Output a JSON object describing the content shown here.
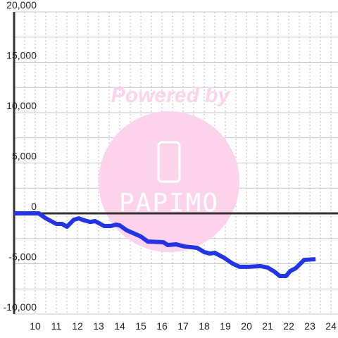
{
  "chart_data": {
    "type": "line",
    "watermark": {
      "title": "Powered by",
      "logo": "PAPIMO"
    },
    "x": [
      9,
      10.17,
      10.5,
      11,
      11.27,
      11.5,
      11.83,
      12.07,
      12.33,
      12.6,
      12.83,
      13.27,
      13.57,
      13.83,
      14,
      14.33,
      15,
      15.33,
      16.07,
      16.27,
      16.67,
      17.07,
      17.67,
      18,
      18.27,
      18.5,
      18.93,
      19.33,
      19.67,
      20.07,
      20.67,
      21,
      21.33,
      21.57,
      21.87,
      22.07,
      22.33,
      22.73,
      23.27
    ],
    "series": [
      {
        "color": "#2233ee",
        "values": [
          0,
          0,
          -490,
          -1050,
          -1050,
          -1330,
          -630,
          -500,
          -700,
          -850,
          -770,
          -1260,
          -1260,
          -1120,
          -1190,
          -1680,
          -2300,
          -2800,
          -2870,
          -3150,
          -3080,
          -3290,
          -3430,
          -3850,
          -3990,
          -3920,
          -4400,
          -4970,
          -5310,
          -5310,
          -5240,
          -5380,
          -5800,
          -6220,
          -6220,
          -5730,
          -5450,
          -4620,
          -4550
        ]
      }
    ],
    "xlim": [
      9,
      24.33
    ],
    "ylim": [
      -10000,
      20000
    ],
    "xticks": [
      10,
      11,
      12,
      13,
      14,
      15,
      16,
      17,
      18,
      19,
      20,
      21,
      22,
      23,
      24
    ],
    "x_minor_ticks": [
      9.5,
      10.5,
      11.5,
      12.5,
      13.5,
      14.5,
      15.5,
      16.5,
      17.5,
      18.5,
      19.5,
      20.5,
      21.5,
      22.5,
      23.5
    ],
    "yticks": [
      {
        "value": -10000,
        "label": "-10,000"
      },
      {
        "value": -5000,
        "label": "-5,000"
      },
      0,
      {
        "value": 5000,
        "label": "5,000"
      },
      {
        "value": 10000,
        "label": "10,000"
      },
      {
        "value": 15000,
        "label": "15,000"
      },
      {
        "value": 20000,
        "label": "20,000"
      }
    ],
    "y_minor_ticks": [
      -7500,
      -2500,
      2500,
      7500,
      12500,
      17500
    ],
    "grid": true
  }
}
